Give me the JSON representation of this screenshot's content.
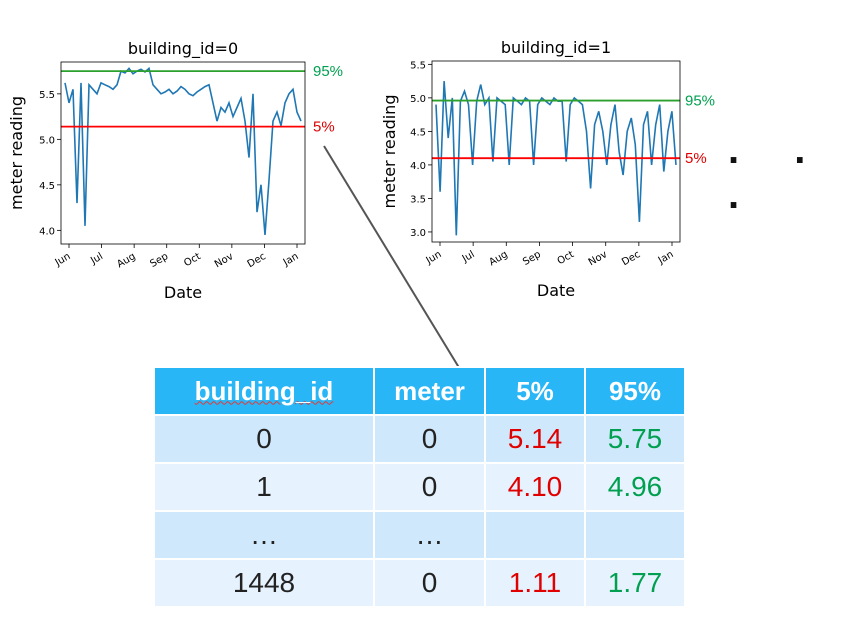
{
  "colors": {
    "series": "#1f77b4",
    "upper": "#2ca02c",
    "lower": "#ff0000",
    "pct95_text": "#00a050",
    "pct5_text": "#e00000",
    "header_bg": "#29b6f6"
  },
  "chart_data": [
    {
      "type": "line",
      "title": "building_id=0",
      "xlabel": "Date",
      "ylabel": "meter reading",
      "x_ticks": [
        "Jun",
        "Jul",
        "Aug",
        "Sep",
        "Oct",
        "Nov",
        "Dec",
        "Jan"
      ],
      "y_ticks": [
        "4.0",
        "4.5",
        "5.0",
        "5.5"
      ],
      "ylim": [
        3.85,
        5.85
      ],
      "grid": false,
      "reference_lines": [
        {
          "label": "95%",
          "value": 5.75,
          "color": "#2ca02c"
        },
        {
          "label": "5%",
          "value": 5.14,
          "color": "#ff0000"
        }
      ],
      "series": [
        {
          "values": [
            5.62,
            5.4,
            5.55,
            4.3,
            5.62,
            4.05,
            5.6,
            5.55,
            5.5,
            5.62,
            5.6,
            5.58,
            5.55,
            5.6,
            5.75,
            5.73,
            5.78,
            5.72,
            5.75,
            5.77,
            5.74,
            5.78,
            5.6,
            5.55,
            5.5,
            5.52,
            5.55,
            5.5,
            5.53,
            5.58,
            5.55,
            5.5,
            5.48,
            5.52,
            5.55,
            5.58,
            5.6,
            5.4,
            5.2,
            5.35,
            5.3,
            5.4,
            5.25,
            5.35,
            5.45,
            5.2,
            4.8,
            5.5,
            4.2,
            4.5,
            3.95,
            4.55,
            5.2,
            5.3,
            5.15,
            5.4,
            5.5,
            5.55,
            5.3,
            5.2
          ]
        }
      ]
    },
    {
      "type": "line",
      "title": "building_id=1",
      "xlabel": "Date",
      "ylabel": "meter reading",
      "x_ticks": [
        "Jun",
        "Jul",
        "Aug",
        "Sep",
        "Oct",
        "Nov",
        "Dec",
        "Jan"
      ],
      "y_ticks": [
        "3.0",
        "3.5",
        "4.0",
        "4.5",
        "5.0",
        "5.5"
      ],
      "ylim": [
        2.85,
        5.55
      ],
      "grid": false,
      "reference_lines": [
        {
          "label": "95%",
          "value": 4.96,
          "color": "#2ca02c"
        },
        {
          "label": "5%",
          "value": 4.1,
          "color": "#ff0000"
        }
      ],
      "series": [
        {
          "values": [
            4.9,
            3.6,
            5.25,
            4.4,
            5.0,
            2.95,
            4.95,
            5.1,
            4.9,
            4.0,
            4.95,
            5.2,
            4.9,
            5.0,
            4.05,
            5.0,
            4.95,
            4.9,
            4.0,
            5.0,
            4.95,
            4.9,
            5.0,
            4.95,
            4.0,
            4.9,
            5.0,
            4.95,
            4.9,
            5.0,
            4.95,
            4.95,
            4.05,
            4.9,
            5.0,
            4.95,
            4.9,
            4.5,
            3.65,
            4.6,
            4.8,
            4.5,
            4.0,
            4.6,
            4.9,
            4.2,
            3.85,
            4.5,
            4.7,
            4.3,
            3.15,
            4.6,
            4.8,
            4.0,
            4.6,
            4.9,
            3.9,
            4.5,
            4.8,
            4.0
          ]
        }
      ]
    }
  ],
  "ellipsis_dots": ". . .",
  "table": {
    "headers": [
      "building_id",
      "meter",
      "5%",
      "95%"
    ],
    "rows": [
      [
        "0",
        "0",
        "5.14",
        "5.75"
      ],
      [
        "1",
        "0",
        "4.10",
        "4.96"
      ],
      [
        "…",
        "…",
        "",
        ""
      ],
      [
        "1448",
        "0",
        "1.11",
        "1.77"
      ]
    ]
  }
}
